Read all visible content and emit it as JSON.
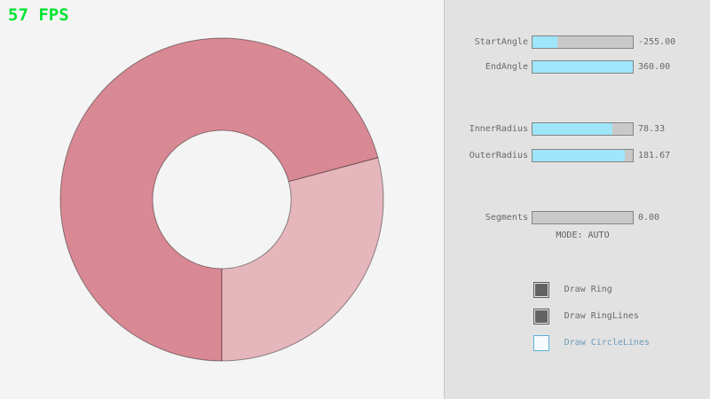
{
  "fps": {
    "label": "57 FPS",
    "color": "#00e430"
  },
  "ring": {
    "colors": {
      "dark_sector": "#d98994",
      "light_sector": "#e6b6bd",
      "outline": "rgba(0,0,0,0.42)"
    }
  },
  "panel": {
    "sliders": [
      {
        "label": "StartAngle",
        "value": "-255.00",
        "fill_pct": 25
      },
      {
        "label": "EndAngle",
        "value": "360.00",
        "fill_pct": 100
      },
      {
        "label": "InnerRadius",
        "value": "78.33",
        "fill_pct": 80
      },
      {
        "label": "OuterRadius",
        "value": "181.67",
        "fill_pct": 92
      },
      {
        "label": "Segments",
        "value": "0.00",
        "fill_pct": 0
      }
    ],
    "mode_text": "MODE: AUTO",
    "checkboxes": [
      {
        "label": "Draw Ring",
        "checked": true,
        "focused": false
      },
      {
        "label": "Draw RingLines",
        "checked": true,
        "focused": false
      },
      {
        "label": "Draw CircleLines",
        "checked": false,
        "focused": true
      }
    ],
    "accent_colors": {
      "slider_fill": "#9fe6fb",
      "focused_border": "#5bb2d9",
      "focused_text": "#6c9bbc"
    }
  }
}
